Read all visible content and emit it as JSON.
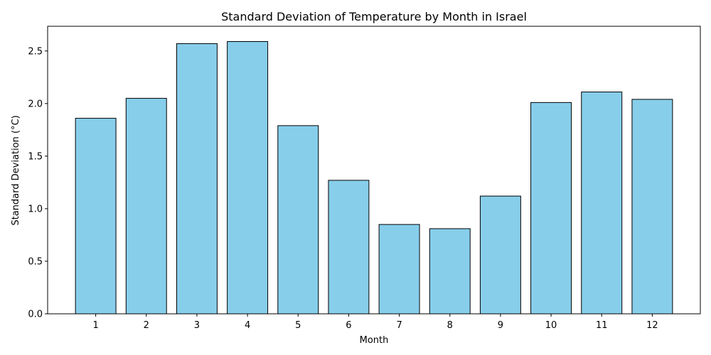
{
  "chart_data": {
    "type": "bar",
    "title": "Standard Deviation of Temperature by Month in Israel",
    "xlabel": "Month",
    "ylabel": "Standard Deviation (°C)",
    "categories": [
      "1",
      "2",
      "3",
      "4",
      "5",
      "6",
      "7",
      "8",
      "9",
      "10",
      "11",
      "12"
    ],
    "values": [
      1.86,
      2.05,
      2.57,
      2.59,
      1.79,
      1.27,
      0.85,
      0.81,
      1.12,
      2.01,
      2.11,
      2.04
    ],
    "ylim": [
      0,
      2.735
    ],
    "yticks": [
      0.0,
      0.5,
      1.0,
      1.5,
      2.0,
      2.5
    ],
    "ytick_labels": [
      "0.0",
      "0.5",
      "1.0",
      "1.5",
      "2.0",
      "2.5"
    ],
    "grid": false,
    "colors": {
      "bar_fill": "#87ceeb",
      "bar_edge": "#000000"
    }
  }
}
